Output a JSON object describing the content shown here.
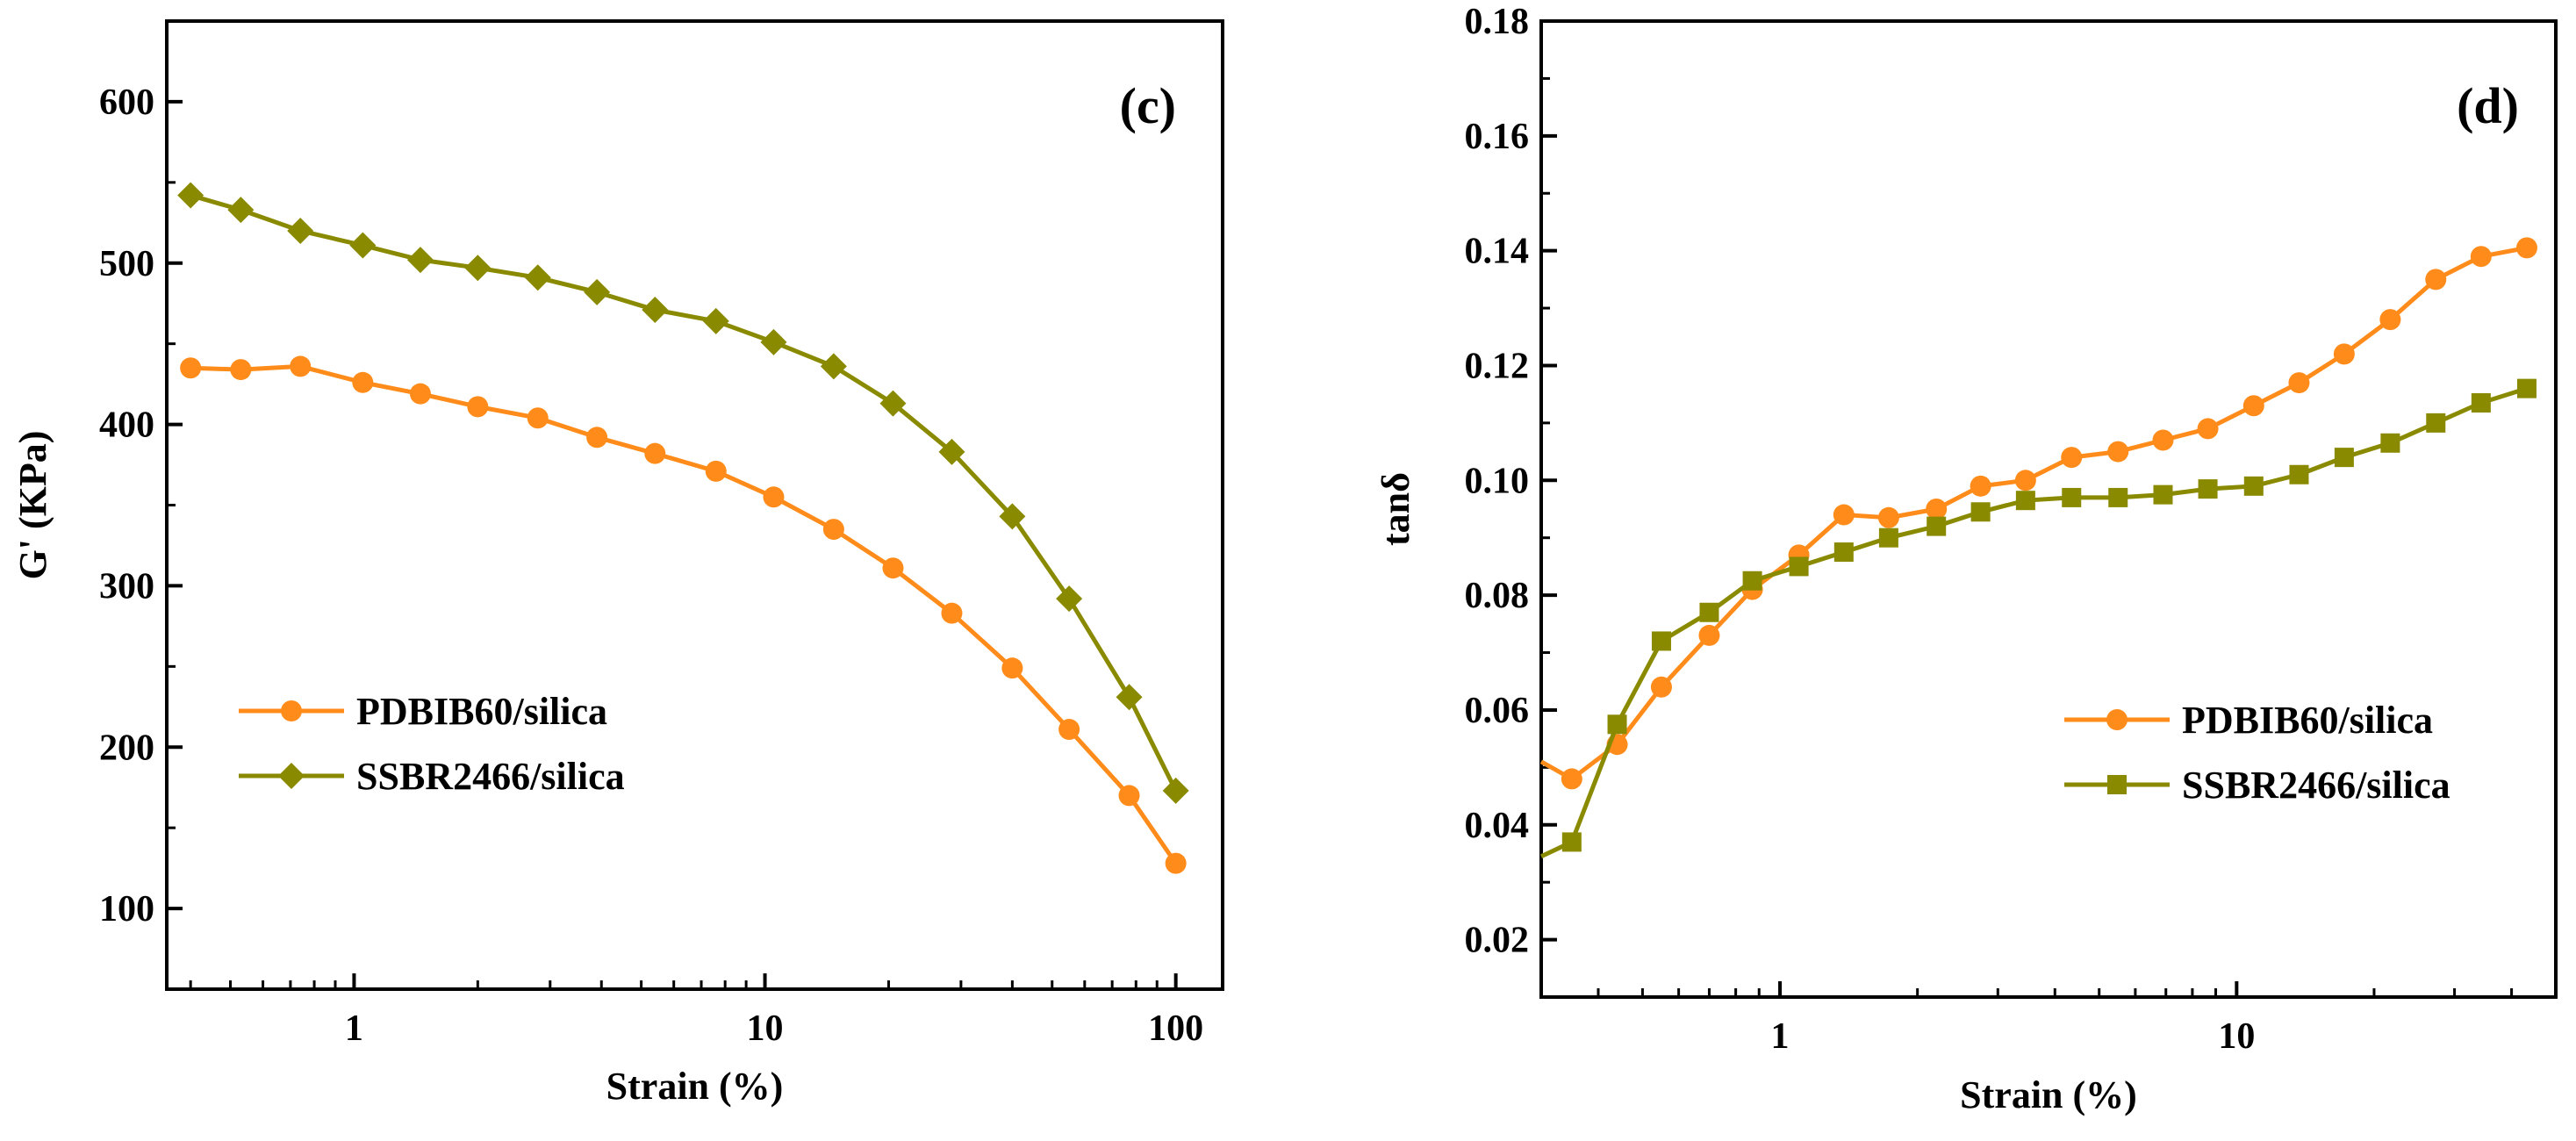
{
  "chart_data": [
    {
      "type": "line",
      "panel_label": "(c)",
      "xlabel": "Strain (%)",
      "ylabel": "G' (KPa)",
      "xscale": "log",
      "xlim": [
        0.35,
        130
      ],
      "ylim": [
        50,
        650
      ],
      "xticks": [
        {
          "value": 1,
          "label": "1"
        },
        {
          "value": 10,
          "label": "10"
        },
        {
          "value": 100,
          "label": "100"
        }
      ],
      "yticks": [
        {
          "value": 100,
          "label": "100"
        },
        {
          "value": 200,
          "label": "200"
        },
        {
          "value": 300,
          "label": "300"
        },
        {
          "value": 400,
          "label": "400"
        },
        {
          "value": 500,
          "label": "500"
        },
        {
          "value": 600,
          "label": "600"
        }
      ],
      "yminor": [
        50,
        150,
        250,
        350,
        450,
        550,
        650
      ],
      "legend_position": "lower-left",
      "series": [
        {
          "name": "PDBIB60/silica",
          "color": "#ff8c1a",
          "marker": "circle",
          "x": [
            0.4,
            0.53,
            0.74,
            1.05,
            1.45,
            2.0,
            2.8,
            3.9,
            5.4,
            7.6,
            10.5,
            14.7,
            20.5,
            28.5,
            40,
            55,
            77,
            100
          ],
          "values": [
            435,
            434,
            436,
            426,
            419,
            411,
            404,
            392,
            382,
            371,
            355,
            335,
            311,
            283,
            249,
            211,
            170,
            128
          ]
        },
        {
          "name": "SSBR2466/silica",
          "color": "#8a8a00",
          "marker": "diamond",
          "x": [
            0.4,
            0.53,
            0.74,
            1.05,
            1.45,
            2.0,
            2.8,
            3.9,
            5.4,
            7.6,
            10.5,
            14.7,
            20.5,
            28.5,
            40,
            55,
            77,
            100
          ],
          "values": [
            542,
            533,
            520,
            511,
            502,
            497,
            491,
            482,
            471,
            464,
            451,
            436,
            413,
            383,
            343,
            292,
            231,
            173
          ]
        }
      ]
    },
    {
      "type": "line",
      "panel_label": "(d)",
      "xlabel": "Strain (%)",
      "ylabel": "tanδ",
      "xscale": "log",
      "xlim": [
        0.3,
        50
      ],
      "ylim": [
        0.01,
        0.18
      ],
      "xticks": [
        {
          "value": 1,
          "label": "1"
        },
        {
          "value": 10,
          "label": "10"
        }
      ],
      "yticks": [
        {
          "value": 0.02,
          "label": "0.02"
        },
        {
          "value": 0.04,
          "label": "0.04"
        },
        {
          "value": 0.06,
          "label": "0.06"
        },
        {
          "value": 0.08,
          "label": "0.08"
        },
        {
          "value": 0.1,
          "label": "0.10"
        },
        {
          "value": 0.12,
          "label": "0.12"
        },
        {
          "value": 0.14,
          "label": "0.14"
        },
        {
          "value": 0.16,
          "label": "0.16"
        },
        {
          "value": 0.18,
          "label": "0.18"
        }
      ],
      "yminor": [
        0.01,
        0.03,
        0.05,
        0.07,
        0.09,
        0.11,
        0.13,
        0.15,
        0.17
      ],
      "legend_position": "lower-right",
      "series": [
        {
          "name": "PDBIB60/silica",
          "color": "#ff8c1a",
          "marker": "circle",
          "lead_in": {
            "x": 0.3,
            "y": 0.051
          },
          "x": [
            0.35,
            0.44,
            0.55,
            0.7,
            0.87,
            1.1,
            1.38,
            1.73,
            2.2,
            2.75,
            3.45,
            4.35,
            5.5,
            6.9,
            8.65,
            10.9,
            13.7,
            17.2,
            21.7,
            27.3,
            34.3,
            43.2
          ],
          "values": [
            0.048,
            0.054,
            0.064,
            0.073,
            0.081,
            0.087,
            0.094,
            0.0935,
            0.095,
            0.099,
            0.1,
            0.104,
            0.105,
            0.107,
            0.109,
            0.113,
            0.117,
            0.122,
            0.128,
            0.135,
            0.139,
            0.1405
          ]
        },
        {
          "name": "SSBR2466/silica",
          "color": "#8a8a00",
          "marker": "square",
          "lead_in": {
            "x": 0.3,
            "y": 0.0345
          },
          "x": [
            0.35,
            0.44,
            0.55,
            0.7,
            0.87,
            1.1,
            1.38,
            1.73,
            2.2,
            2.75,
            3.45,
            4.35,
            5.5,
            6.9,
            8.65,
            10.9,
            13.7,
            17.2,
            21.7,
            27.3,
            34.3,
            43.2
          ],
          "values": [
            0.037,
            0.0575,
            0.072,
            0.077,
            0.0825,
            0.085,
            0.0875,
            0.09,
            0.092,
            0.0945,
            0.0965,
            0.097,
            0.097,
            0.0975,
            0.0985,
            0.099,
            0.101,
            0.104,
            0.1065,
            0.11,
            0.1135,
            0.116
          ]
        }
      ]
    }
  ]
}
